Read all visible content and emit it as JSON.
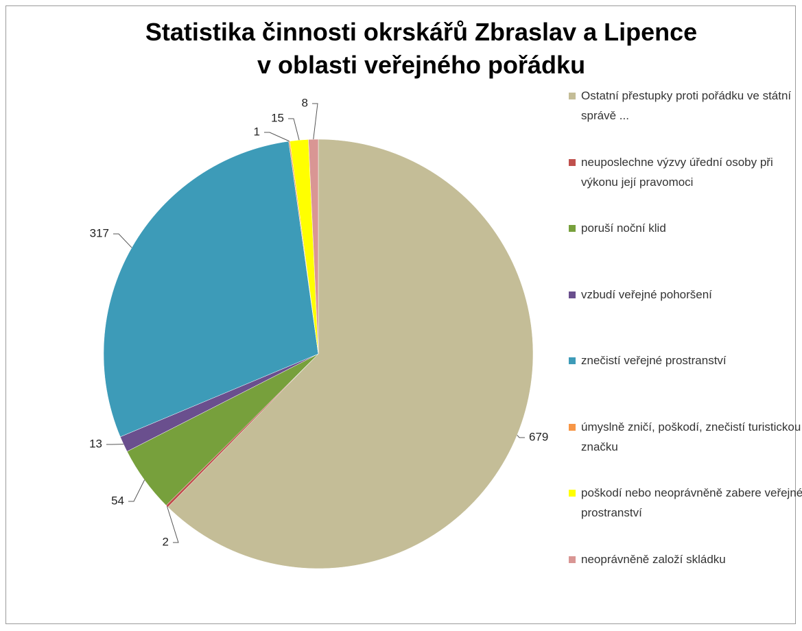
{
  "chart_data": {
    "type": "pie",
    "title": "Statistika činnosti okrskářů Zbraslav a Lipence\nv oblasti veřejného pořádku",
    "categories": [
      "Ostatní přestupky proti pořádku ve státní správě ...",
      "neuposlechne výzvy úřední osoby při výkonu její pravomoci",
      "poruší noční klid",
      "vzbudí veřejné pohoršení",
      "znečistí veřejné prostranství",
      "úmyslně zničí, poškodí, znečistí turistickou značku",
      "poškodí nebo neoprávněně zabere veřejné prostranství",
      "neoprávněně založí skládku"
    ],
    "values": [
      679,
      2,
      54,
      13,
      317,
      1,
      15,
      8
    ],
    "colors": [
      "#c4bd97",
      "#c0504d",
      "#77a03c",
      "#6a4f8e",
      "#3d9bb8",
      "#f79646",
      "#ffff00",
      "#d99694"
    ],
    "legend": "right"
  }
}
